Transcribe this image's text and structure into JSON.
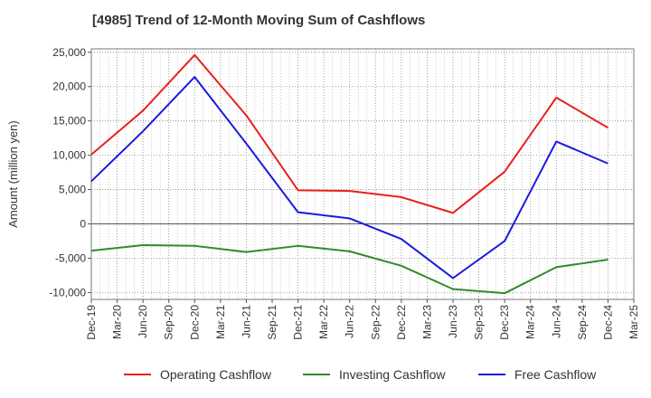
{
  "chart_data": {
    "type": "line",
    "title": "[4985]  Trend of 12-Month Moving Sum of Cashflows",
    "ylabel": "Amount (million yen)",
    "xlabel": "",
    "ylim": [
      -11000,
      25500
    ],
    "yticks": [
      25000,
      20000,
      15000,
      10000,
      5000,
      0,
      -5000,
      -10000
    ],
    "ytick_labels": [
      "25,000",
      "20,000",
      "15,000",
      "10,000",
      "5,000",
      "0",
      "-5,000",
      "-10,000"
    ],
    "categories": [
      "Dec-19",
      "Mar-20",
      "Jun-20",
      "Sep-20",
      "Dec-20",
      "Mar-21",
      "Jun-21",
      "Sep-21",
      "Dec-21",
      "Mar-22",
      "Jun-22",
      "Sep-22",
      "Dec-22",
      "Mar-23",
      "Jun-23",
      "Sep-23",
      "Dec-23",
      "Mar-24",
      "Jun-24",
      "Sep-24",
      "Dec-24",
      "Mar-25"
    ],
    "grid": true,
    "legend_position": "bottom",
    "series": [
      {
        "name": "Operating Cashflow",
        "color": "#e8211d",
        "points": [
          {
            "x": "Dec-19",
            "y": 10100
          },
          {
            "x": "Jun-20",
            "y": 16500
          },
          {
            "x": "Dec-20",
            "y": 24600
          },
          {
            "x": "Jun-21",
            "y": 15800
          },
          {
            "x": "Dec-21",
            "y": 4900
          },
          {
            "x": "Jun-22",
            "y": 4800
          },
          {
            "x": "Dec-22",
            "y": 3900
          },
          {
            "x": "Jun-23",
            "y": 1600
          },
          {
            "x": "Dec-23",
            "y": 7600
          },
          {
            "x": "Jun-24",
            "y": 18400
          },
          {
            "x": "Dec-24",
            "y": 14000
          }
        ]
      },
      {
        "name": "Investing Cashflow",
        "color": "#2e8b2e",
        "points": [
          {
            "x": "Dec-19",
            "y": -3900
          },
          {
            "x": "Jun-20",
            "y": -3100
          },
          {
            "x": "Dec-20",
            "y": -3200
          },
          {
            "x": "Jun-21",
            "y": -4100
          },
          {
            "x": "Dec-21",
            "y": -3200
          },
          {
            "x": "Jun-22",
            "y": -4000
          },
          {
            "x": "Dec-22",
            "y": -6100
          },
          {
            "x": "Jun-23",
            "y": -9500
          },
          {
            "x": "Dec-23",
            "y": -10100
          },
          {
            "x": "Jun-24",
            "y": -6300
          },
          {
            "x": "Dec-24",
            "y": -5200
          }
        ]
      },
      {
        "name": "Free Cashflow",
        "color": "#1a1adf",
        "points": [
          {
            "x": "Dec-19",
            "y": 6200
          },
          {
            "x": "Jun-20",
            "y": 13500
          },
          {
            "x": "Dec-20",
            "y": 21400
          },
          {
            "x": "Jun-21",
            "y": 11700
          },
          {
            "x": "Dec-21",
            "y": 1700
          },
          {
            "x": "Jun-22",
            "y": 800
          },
          {
            "x": "Dec-22",
            "y": -2200
          },
          {
            "x": "Jun-23",
            "y": -7900
          },
          {
            "x": "Dec-23",
            "y": -2500
          },
          {
            "x": "Jun-24",
            "y": 12000
          },
          {
            "x": "Dec-24",
            "y": 8800
          }
        ]
      }
    ]
  }
}
